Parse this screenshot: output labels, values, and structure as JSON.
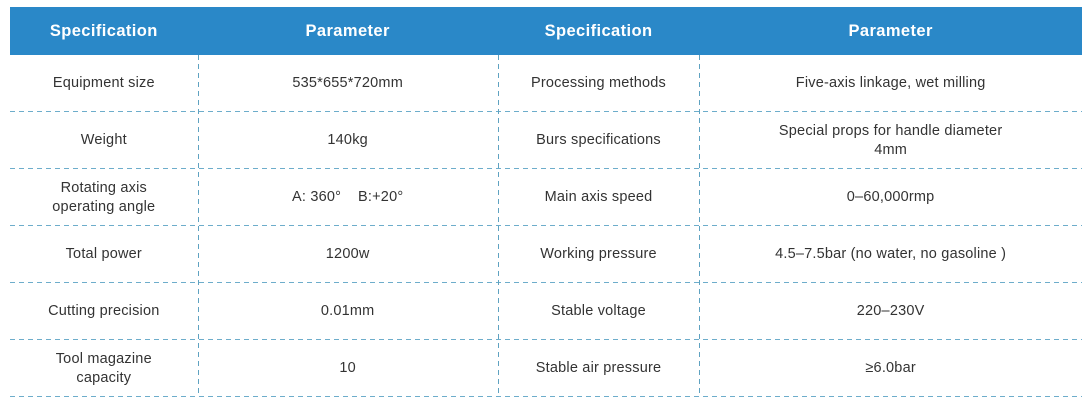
{
  "header": {
    "cells": [
      "Specification",
      "Parameter",
      "Specification",
      "Parameter"
    ],
    "bg_color": "#2a88c8",
    "text_color": "#ffffff"
  },
  "rows": [
    {
      "spec_left": "Equipment size",
      "param_left": "535*655*720mm",
      "spec_right": "Processing methods",
      "param_right": "Five-axis linkage, wet milling"
    },
    {
      "spec_left": "Weight",
      "param_left": "140kg",
      "spec_right": "Burs specifications",
      "param_right": "Special props for handle diameter\n4mm"
    },
    {
      "spec_left": "Rotating axis\noperating angle",
      "param_left": "A: 360°    B:+20°",
      "spec_right": "Main axis speed",
      "param_right": "0–60,000rmp"
    },
    {
      "spec_left": "Total power",
      "param_left": "1200w",
      "spec_right": "Working pressure",
      "param_right": "4.5–7.5bar (no water, no gasoline )"
    },
    {
      "spec_left": "Cutting precision",
      "param_left": "0.01mm",
      "spec_right": "Stable voltage",
      "param_right": "220–230V"
    },
    {
      "spec_left": "Tool magazine\ncapacity",
      "param_left": "10",
      "spec_right": "Stable air pressure",
      "param_right": "≥6.0bar"
    }
  ],
  "colors": {
    "dash_line": "#6dadcb",
    "body_text": "#333333"
  }
}
